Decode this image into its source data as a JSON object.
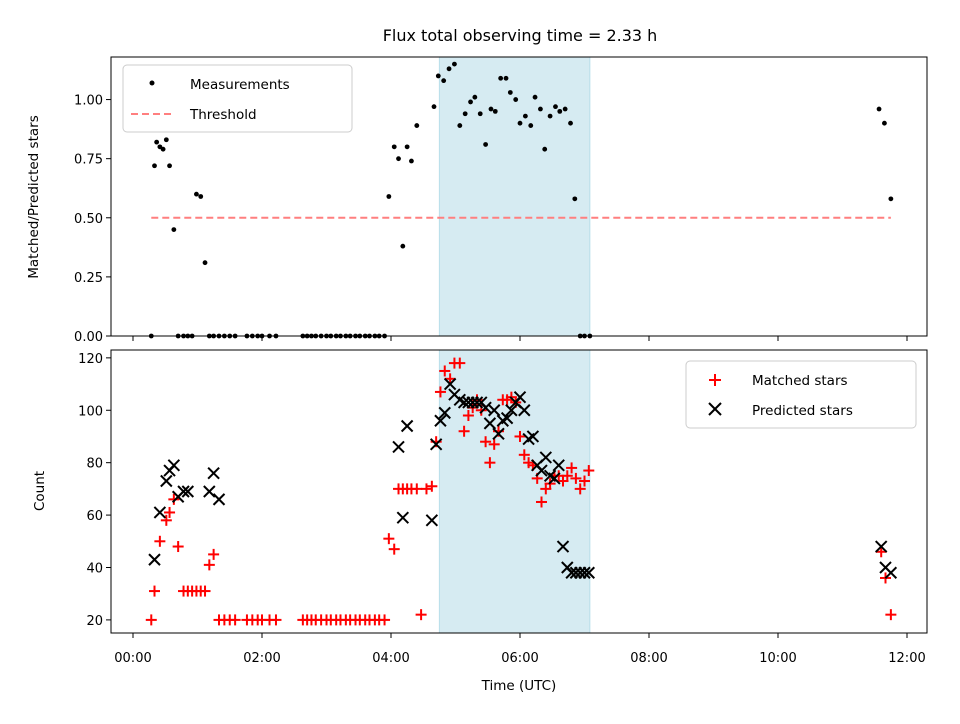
{
  "chart_data": [
    {
      "type": "scatter",
      "title": "Flux total observing time = 2.33 h",
      "xlabel": "",
      "ylabel": "Matched/Predicted stars",
      "xlim": [
        "00:00",
        "12:00"
      ],
      "ylim": [
        0,
        1.18
      ],
      "yticks": [
        "0.00",
        "0.25",
        "0.50",
        "0.75",
        "1.00"
      ],
      "shaded_span": {
        "x": [
          "04:45",
          "07:05"
        ],
        "color": "#add8e6"
      },
      "legend": {
        "placement": "upper-left",
        "entries": [
          "Measurements",
          "Threshold"
        ]
      },
      "series": [
        {
          "name": "Measurements",
          "marker": "dot",
          "color": "#000000",
          "x": [
            "00:17",
            "00:20",
            "00:22",
            "00:25",
            "00:28",
            "00:31",
            "00:34",
            "00:38",
            "00:42",
            "00:47",
            "00:51",
            "00:55",
            "00:59",
            "01:03",
            "01:07",
            "01:11",
            "01:15",
            "01:20",
            "01:25",
            "01:30",
            "01:35",
            "01:46",
            "01:51",
            "01:56",
            "02:00",
            "02:07",
            "02:13",
            "02:38",
            "02:42",
            "02:46",
            "02:50",
            "02:55",
            "03:00",
            "03:04",
            "03:09",
            "03:13",
            "03:18",
            "03:22",
            "03:27",
            "03:31",
            "03:36",
            "03:40",
            "03:45",
            "03:49",
            "03:54",
            "03:58",
            "04:03",
            "04:07",
            "04:11",
            "04:15",
            "04:19",
            "04:24",
            "04:40",
            "04:44",
            "04:49",
            "04:54",
            "04:59",
            "05:04",
            "05:09",
            "05:14",
            "05:18",
            "05:23",
            "05:28",
            "05:33",
            "05:37",
            "05:42",
            "05:47",
            "05:51",
            "05:56",
            "06:00",
            "06:05",
            "06:10",
            "06:14",
            "06:19",
            "06:23",
            "06:28",
            "06:33",
            "06:37",
            "06:42",
            "06:47",
            "06:51",
            "06:56",
            "07:00",
            "07:05",
            "11:34",
            "11:39",
            "11:45"
          ],
          "values": [
            0.0,
            0.72,
            0.82,
            0.8,
            0.79,
            0.83,
            0.72,
            0.45,
            0.0,
            0.0,
            0.0,
            0.0,
            0.6,
            0.59,
            0.31,
            0.0,
            0.0,
            0.0,
            0.0,
            0.0,
            0.0,
            0.0,
            0.0,
            0.0,
            0.0,
            0.0,
            0.0,
            0.0,
            0.0,
            0.0,
            0.0,
            0.0,
            0.0,
            0.0,
            0.0,
            0.0,
            0.0,
            0.0,
            0.0,
            0.0,
            0.0,
            0.0,
            0.0,
            0.0,
            0.0,
            0.59,
            0.8,
            0.75,
            0.38,
            0.8,
            0.74,
            0.89,
            0.97,
            1.1,
            1.08,
            1.13,
            1.15,
            0.89,
            0.94,
            0.99,
            1.01,
            0.94,
            0.81,
            0.96,
            0.95,
            1.09,
            1.09,
            1.03,
            1.0,
            0.9,
            0.93,
            0.89,
            1.01,
            0.96,
            0.79,
            0.93,
            0.97,
            0.95,
            0.96,
            0.9,
            0.58,
            0.0,
            0.0,
            0.0,
            0.96,
            0.9,
            0.58
          ]
        },
        {
          "name": "Threshold",
          "style": "dashed",
          "color": "#ff7f7f",
          "x": [
            "00:17",
            "11:45"
          ],
          "values": [
            0.5,
            0.5
          ]
        }
      ]
    },
    {
      "type": "scatter",
      "title": "",
      "xlabel": "Time (UTC)",
      "ylabel": "Count",
      "xlim": [
        "00:00",
        "12:00"
      ],
      "ylim": [
        15,
        123
      ],
      "xticks": [
        "00:00",
        "02:00",
        "04:00",
        "06:00",
        "08:00",
        "10:00",
        "12:00"
      ],
      "yticks": [
        "20",
        "40",
        "60",
        "80",
        "100",
        "120"
      ],
      "shaded_span": {
        "x": [
          "04:45",
          "07:05"
        ],
        "color": "#add8e6"
      },
      "legend": {
        "placement": "upper-right",
        "entries": [
          "Matched stars",
          "Predicted stars"
        ]
      },
      "series": [
        {
          "name": "Matched stars",
          "marker": "plus",
          "color": "#ff0000",
          "x": [
            "00:17",
            "00:20",
            "00:25",
            "00:31",
            "00:34",
            "00:38",
            "00:42",
            "00:47",
            "00:51",
            "00:55",
            "00:59",
            "01:03",
            "01:07",
            "01:11",
            "01:15",
            "01:20",
            "01:25",
            "01:30",
            "01:35",
            "01:46",
            "01:51",
            "01:56",
            "02:00",
            "02:07",
            "02:13",
            "02:38",
            "02:42",
            "02:46",
            "02:50",
            "02:55",
            "03:00",
            "03:04",
            "03:09",
            "03:13",
            "03:18",
            "03:22",
            "03:27",
            "03:31",
            "03:36",
            "03:40",
            "03:45",
            "03:49",
            "03:54",
            "03:58",
            "04:03",
            "04:07",
            "04:11",
            "04:15",
            "04:19",
            "04:24",
            "04:28",
            "04:33",
            "04:38",
            "04:42",
            "04:46",
            "04:50",
            "04:55",
            "04:59",
            "05:04",
            "05:08",
            "05:12",
            "05:16",
            "05:20",
            "05:24",
            "05:28",
            "05:32",
            "05:36",
            "05:40",
            "05:44",
            "05:48",
            "05:52",
            "05:56",
            "06:00",
            "06:04",
            "06:08",
            "06:12",
            "06:16",
            "06:20",
            "06:24",
            "06:28",
            "06:32",
            "06:36",
            "06:40",
            "06:44",
            "06:48",
            "06:52",
            "06:56",
            "07:00",
            "07:04",
            "11:36",
            "11:40",
            "11:45"
          ],
          "values": [
            20,
            31,
            50,
            58,
            61,
            66,
            48,
            31,
            31,
            31,
            31,
            31,
            31,
            41,
            45,
            20,
            20,
            20,
            20,
            20,
            20,
            20,
            20,
            20,
            20,
            20,
            20,
            20,
            20,
            20,
            20,
            20,
            20,
            20,
            20,
            20,
            20,
            20,
            20,
            20,
            20,
            20,
            20,
            51,
            47,
            70,
            70,
            70,
            70,
            70,
            22,
            70,
            71,
            88,
            107,
            115,
            112,
            118,
            118,
            92,
            98,
            101,
            104,
            100,
            88,
            80,
            87,
            92,
            104,
            104,
            105,
            103,
            90,
            83,
            80,
            79,
            74,
            65,
            70,
            72,
            75,
            75,
            73,
            75,
            78,
            74,
            70,
            73,
            77,
            46,
            36,
            22
          ]
        },
        {
          "name": "Predicted stars",
          "marker": "x",
          "color": "#000000",
          "x": [
            "00:20",
            "00:25",
            "00:31",
            "00:34",
            "00:38",
            "00:42",
            "00:47",
            "00:51",
            "01:11",
            "01:15",
            "01:20",
            "04:07",
            "04:11",
            "04:15",
            "04:38",
            "04:42",
            "04:46",
            "04:50",
            "04:55",
            "04:59",
            "05:04",
            "05:08",
            "05:12",
            "05:16",
            "05:20",
            "05:24",
            "05:28",
            "05:32",
            "05:36",
            "05:40",
            "05:44",
            "05:48",
            "05:52",
            "05:56",
            "06:00",
            "06:04",
            "06:08",
            "06:12",
            "06:16",
            "06:20",
            "06:24",
            "06:28",
            "06:32",
            "06:36",
            "06:40",
            "06:44",
            "06:48",
            "06:52",
            "06:56",
            "07:00",
            "07:04",
            "11:36",
            "11:40",
            "11:45"
          ],
          "values": [
            43,
            61,
            73,
            77,
            79,
            67,
            69,
            69,
            69,
            76,
            66,
            86,
            59,
            94,
            58,
            87,
            96,
            99,
            110,
            106,
            104,
            103,
            103,
            103,
            103,
            103,
            101,
            95,
            100,
            91,
            96,
            97,
            100,
            103,
            105,
            100,
            89,
            90,
            79,
            77,
            82,
            75,
            74,
            79,
            48,
            40,
            38,
            38,
            38,
            38,
            38,
            48,
            40,
            38
          ]
        }
      ]
    }
  ]
}
